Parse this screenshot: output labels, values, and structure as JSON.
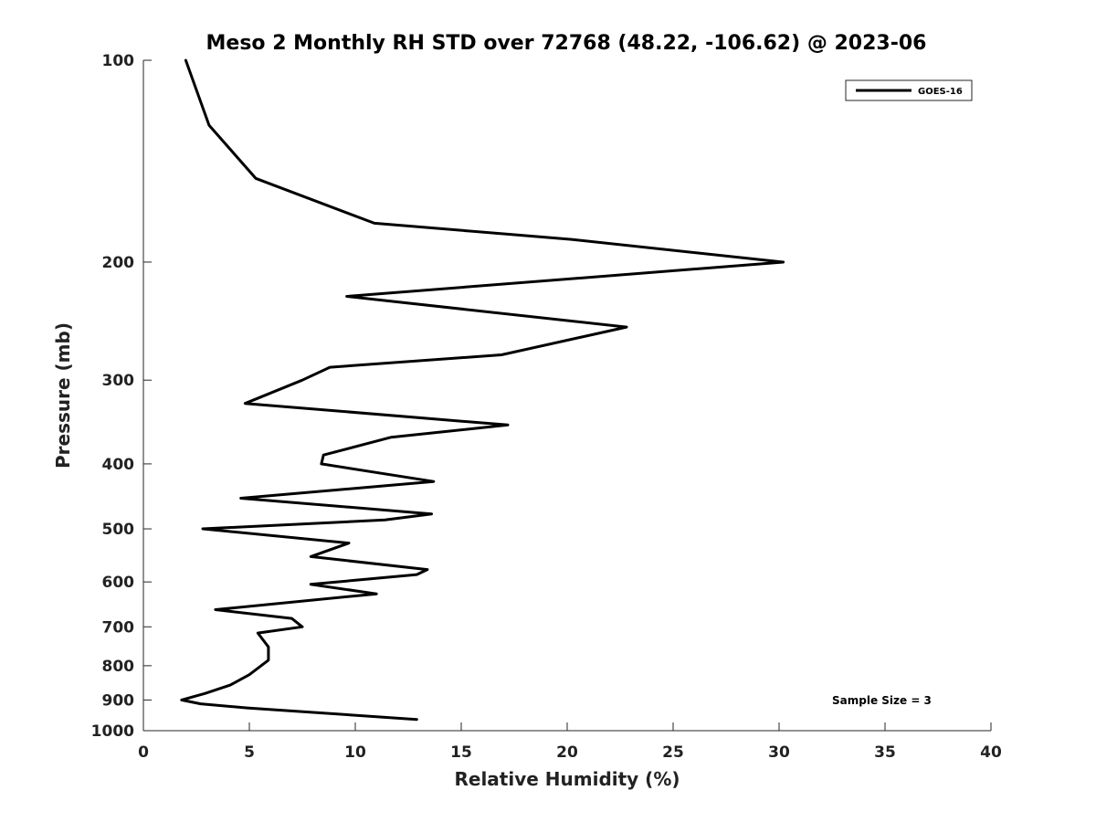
{
  "chart_data": {
    "type": "line",
    "title": "Meso 2 Monthly RH STD over 72768 (48.22, -106.62) @ 2023-06",
    "xlabel": "Relative Humidity (%)",
    "ylabel": "Pressure (mb)",
    "xlim": [
      0,
      40
    ],
    "ylim": [
      100,
      1000
    ],
    "y_scale": "log",
    "y_reversed": true,
    "x_ticks": [
      0,
      5,
      10,
      15,
      20,
      25,
      30,
      35,
      40
    ],
    "y_ticks": [
      100,
      200,
      300,
      400,
      500,
      600,
      700,
      800,
      900,
      1000
    ],
    "grid": false,
    "legend_position": "top-right",
    "annotation": "Sample Size = 3",
    "series": [
      {
        "name": "GOES-16",
        "color": "#000000",
        "points": [
          [
            2.0,
            100
          ],
          [
            3.1,
            125
          ],
          [
            5.3,
            150
          ],
          [
            10.9,
            175
          ],
          [
            20.2,
            185
          ],
          [
            30.2,
            200
          ],
          [
            9.6,
            225
          ],
          [
            22.8,
            250
          ],
          [
            16.9,
            275
          ],
          [
            8.8,
            287
          ],
          [
            7.5,
            300
          ],
          [
            4.8,
            325
          ],
          [
            17.2,
            350
          ],
          [
            11.7,
            365
          ],
          [
            8.5,
            388
          ],
          [
            8.4,
            400
          ],
          [
            13.7,
            425
          ],
          [
            4.6,
            450
          ],
          [
            13.6,
            475
          ],
          [
            11.4,
            485
          ],
          [
            2.8,
            500
          ],
          [
            9.7,
            525
          ],
          [
            7.9,
            550
          ],
          [
            13.4,
            575
          ],
          [
            12.9,
            585
          ],
          [
            7.9,
            605
          ],
          [
            11.0,
            625
          ],
          [
            3.4,
            660
          ],
          [
            7.0,
            680
          ],
          [
            7.5,
            700
          ],
          [
            5.4,
            715
          ],
          [
            5.9,
            750
          ],
          [
            5.9,
            785
          ],
          [
            5.0,
            825
          ],
          [
            4.1,
            855
          ],
          [
            2.9,
            880
          ],
          [
            1.8,
            900
          ],
          [
            2.7,
            912
          ],
          [
            4.9,
            925
          ],
          [
            12.9,
            962
          ]
        ]
      }
    ]
  }
}
